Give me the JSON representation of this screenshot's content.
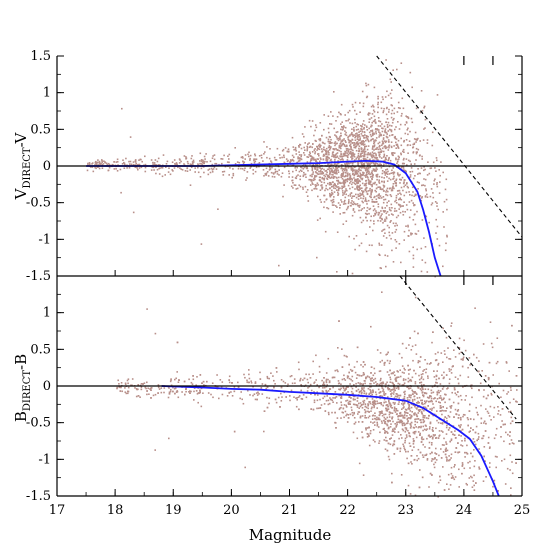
{
  "chart_data": [
    {
      "type": "scatter",
      "panel": "top",
      "ylabel_main": "V",
      "ylabel_sub": "DIRECT",
      "ylabel_tail": "-V",
      "xlabel": "",
      "xlim": [
        17,
        25
      ],
      "ylim": [
        -1.5,
        1.5
      ],
      "yticks": [
        -1.5,
        -1,
        -0.5,
        0,
        0.5,
        1,
        1.5
      ],
      "ytick_labels": [
        "-1.5",
        "-1",
        "-0.5",
        "0",
        "0.5",
        "1",
        "1.5"
      ],
      "scatter_color": "#b8908a",
      "scatter_description": "dense cloud of points centered near 0, widening with magnitude from ~17.5 to ~23.5",
      "series": [
        {
          "kind": "median_line",
          "color": "#1a1aff",
          "x": [
            17.5,
            18.5,
            19.5,
            20.0,
            20.5,
            21.0,
            21.5,
            22.0,
            22.3,
            22.6,
            22.8,
            23.0,
            23.2,
            23.3,
            23.4,
            23.5,
            23.6
          ],
          "y": [
            0.0,
            0.0,
            0.0,
            0.01,
            0.02,
            0.03,
            0.04,
            0.06,
            0.07,
            0.06,
            0.02,
            -0.1,
            -0.35,
            -0.6,
            -0.9,
            -1.25,
            -1.5
          ]
        },
        {
          "kind": "dashed_limit",
          "color": "#000000",
          "x": [
            22.5,
            25.0
          ],
          "y": [
            1.5,
            -0.97
          ]
        },
        {
          "kind": "zero_line",
          "color": "#000000",
          "x": [
            17,
            25
          ],
          "y": [
            0,
            0
          ]
        }
      ],
      "top_tick_marks_x": [
        24.0,
        24.5
      ]
    },
    {
      "type": "scatter",
      "panel": "bottom",
      "ylabel_main": "B",
      "ylabel_sub": "DIRECT",
      "ylabel_tail": "-B",
      "xlabel": "Magnitude",
      "xlim": [
        17,
        25
      ],
      "ylim": [
        -1.5,
        1.5
      ],
      "xticks": [
        17,
        18,
        19,
        20,
        21,
        22,
        23,
        24,
        25
      ],
      "xtick_labels": [
        "17",
        "18",
        "19",
        "20",
        "21",
        "22",
        "23",
        "24",
        "25"
      ],
      "yticks": [
        -1.5,
        -1,
        -0.5,
        0,
        0.5,
        1
      ],
      "ytick_labels": [
        "-1.5",
        "-1",
        "-0.5",
        "0",
        "0.5",
        "1"
      ],
      "scatter_color": "#b8908a",
      "scatter_description": "points centered near 0 from ~18 to ~25, spreading and trending negative at faint magnitudes",
      "series": [
        {
          "kind": "median_line",
          "color": "#1a1aff",
          "x": [
            18.8,
            19.5,
            20.0,
            20.5,
            21.0,
            21.5,
            22.0,
            22.5,
            23.0,
            23.3,
            23.6,
            23.9,
            24.1,
            24.3,
            24.5,
            24.6
          ],
          "y": [
            0.0,
            -0.02,
            -0.04,
            -0.05,
            -0.08,
            -0.1,
            -0.12,
            -0.15,
            -0.2,
            -0.3,
            -0.45,
            -0.6,
            -0.72,
            -0.95,
            -1.3,
            -1.5
          ]
        },
        {
          "kind": "dashed_limit",
          "color": "#000000",
          "x": [
            22.9,
            24.9
          ],
          "y": [
            1.5,
            -0.45
          ]
        },
        {
          "kind": "zero_line",
          "color": "#000000",
          "x": [
            17,
            25
          ],
          "y": [
            0,
            0
          ]
        }
      ],
      "top_tick_marks_x": [
        23.0,
        24.0,
        24.5
      ]
    }
  ]
}
